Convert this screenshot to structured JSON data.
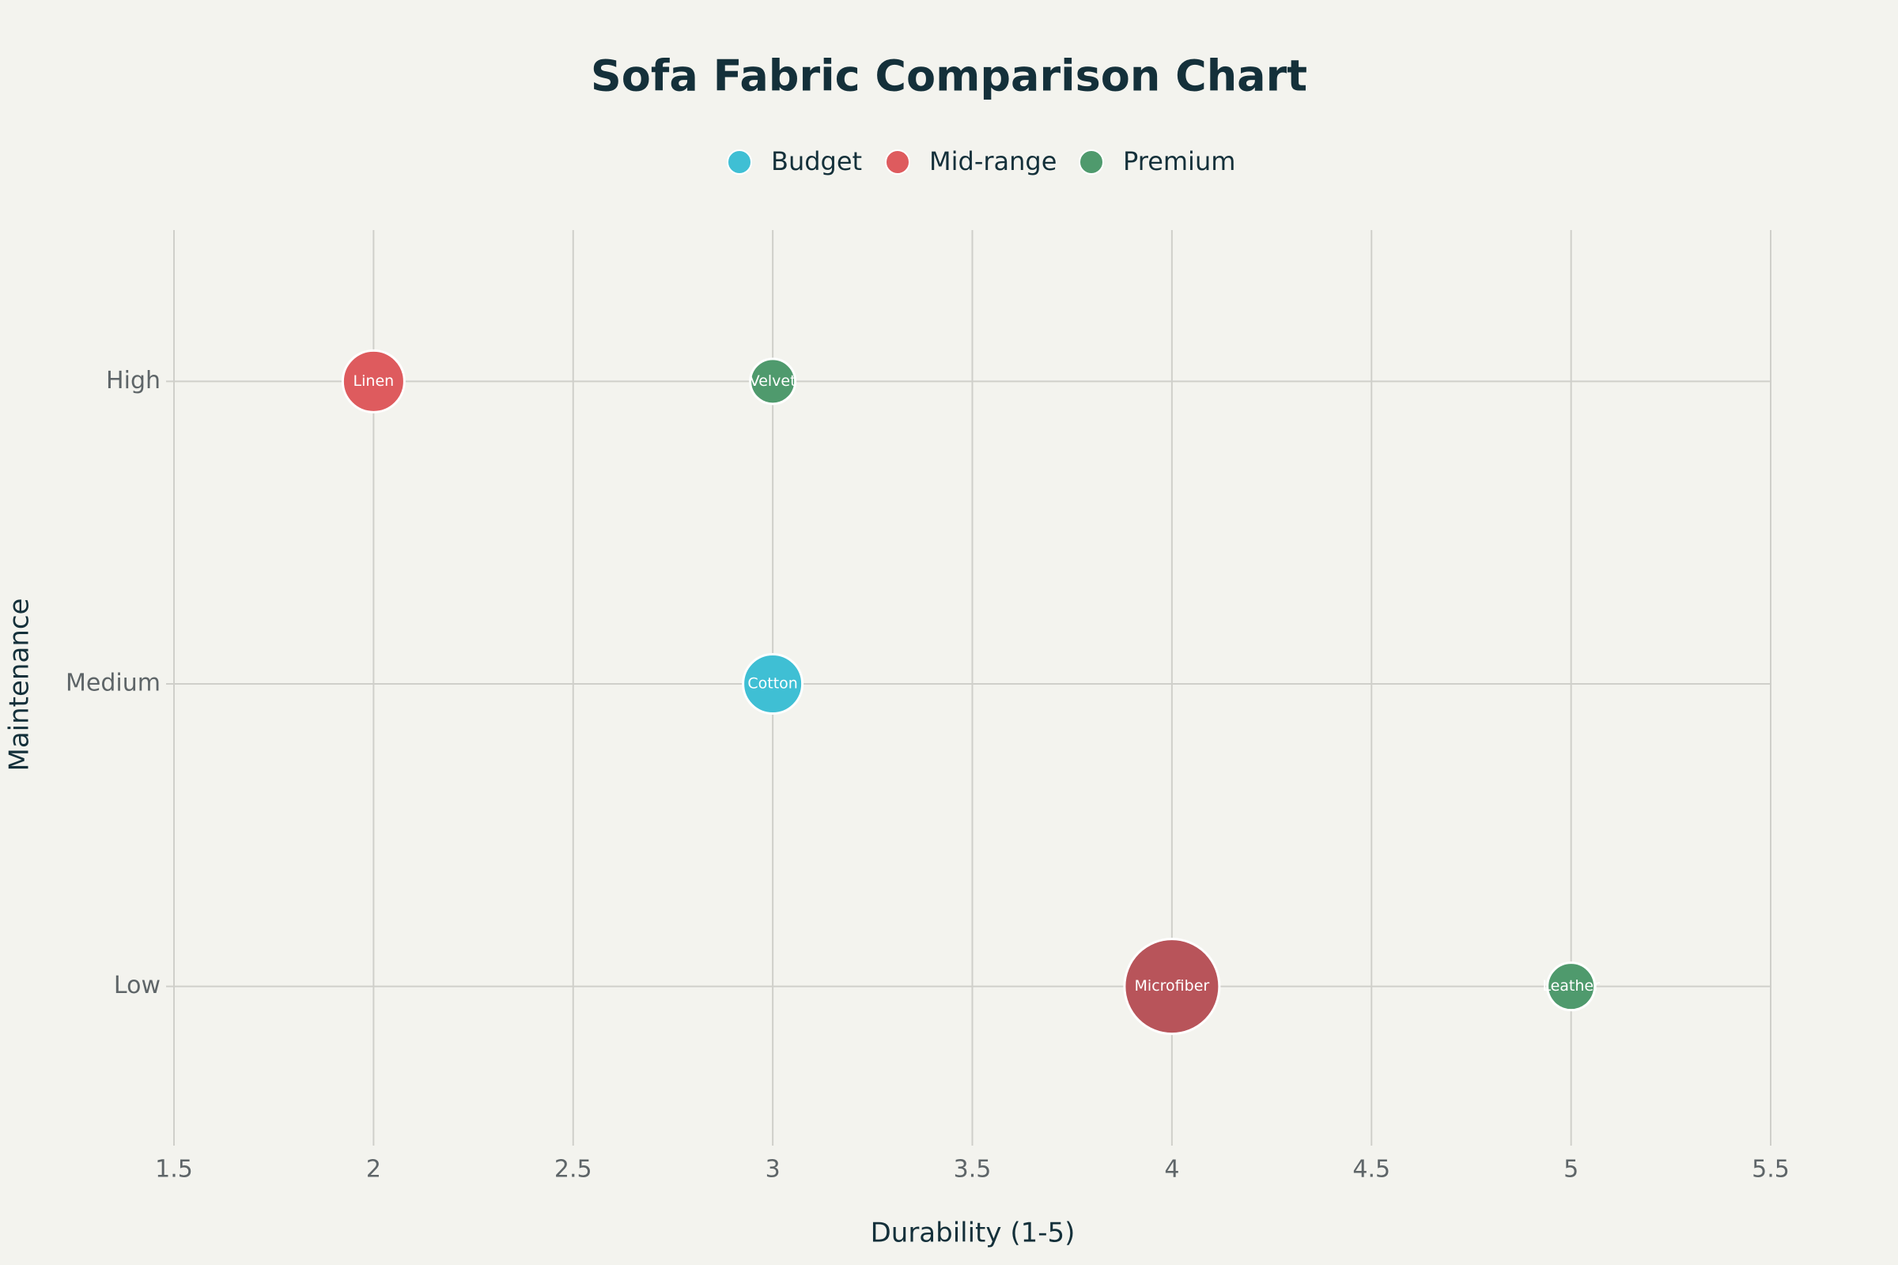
{
  "chart_data": {
    "type": "scatter",
    "title": "Sofa Fabric Comparison Chart",
    "x_label": "Durability (1-5)",
    "y_label": "Maintenance",
    "y_categories": [
      "Low",
      "Medium",
      "High"
    ],
    "xlim": [
      1.5,
      5.5
    ],
    "xticks": [
      1.5,
      2,
      2.5,
      3,
      3.5,
      4,
      4.5,
      5,
      5.5
    ],
    "grid": true,
    "legend": "top",
    "series": [
      {
        "name": "Budget",
        "color": "#3fbfd4",
        "labels": [
          "Cotton"
        ],
        "x": [
          3
        ],
        "values": [
          "Medium"
        ],
        "sizes": [
          25
        ],
        "point_colors": [
          "#3fbfd4"
        ]
      },
      {
        "name": "Mid-range",
        "color": "#de5b5e",
        "labels": [
          "Linen",
          "Microfiber"
        ],
        "x": [
          2,
          4
        ],
        "values": [
          "High",
          "Low"
        ],
        "sizes": [
          26,
          40
        ],
        "point_colors": [
          "#de5b5e",
          "#b8545a"
        ]
      },
      {
        "name": "Premium",
        "color": "#4f9a6d",
        "labels": [
          "Velvet",
          "Leather"
        ],
        "x": [
          3,
          5
        ],
        "values": [
          "High",
          "Low"
        ],
        "sizes": [
          19,
          20
        ],
        "point_colors": [
          "#4f9a6d",
          "#4f9a6d"
        ]
      }
    ]
  }
}
